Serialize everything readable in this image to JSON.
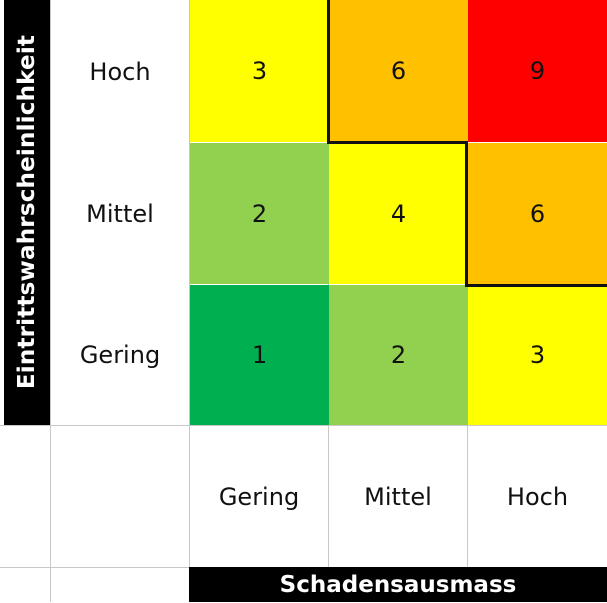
{
  "axes": {
    "y_title": "Eintrittswahrscheinlichkeit",
    "x_title": "Schadensausmass"
  },
  "rows": [
    {
      "label": "Hoch"
    },
    {
      "label": "Mittel"
    },
    {
      "label": "Gering"
    }
  ],
  "columns": [
    {
      "label": "Gering"
    },
    {
      "label": "Mittel"
    },
    {
      "label": "Hoch"
    }
  ],
  "matrix": [
    [
      {
        "value": "3",
        "color": "#ffff00"
      },
      {
        "value": "6",
        "color": "#ffc000"
      },
      {
        "value": "9",
        "color": "#ff0000"
      }
    ],
    [
      {
        "value": "2",
        "color": "#92d050"
      },
      {
        "value": "4",
        "color": "#ffff00"
      },
      {
        "value": "6",
        "color": "#ffc000"
      }
    ],
    [
      {
        "value": "1",
        "color": "#00b050"
      },
      {
        "value": "2",
        "color": "#92d050"
      },
      {
        "value": "3",
        "color": "#ffff00"
      }
    ]
  ]
}
